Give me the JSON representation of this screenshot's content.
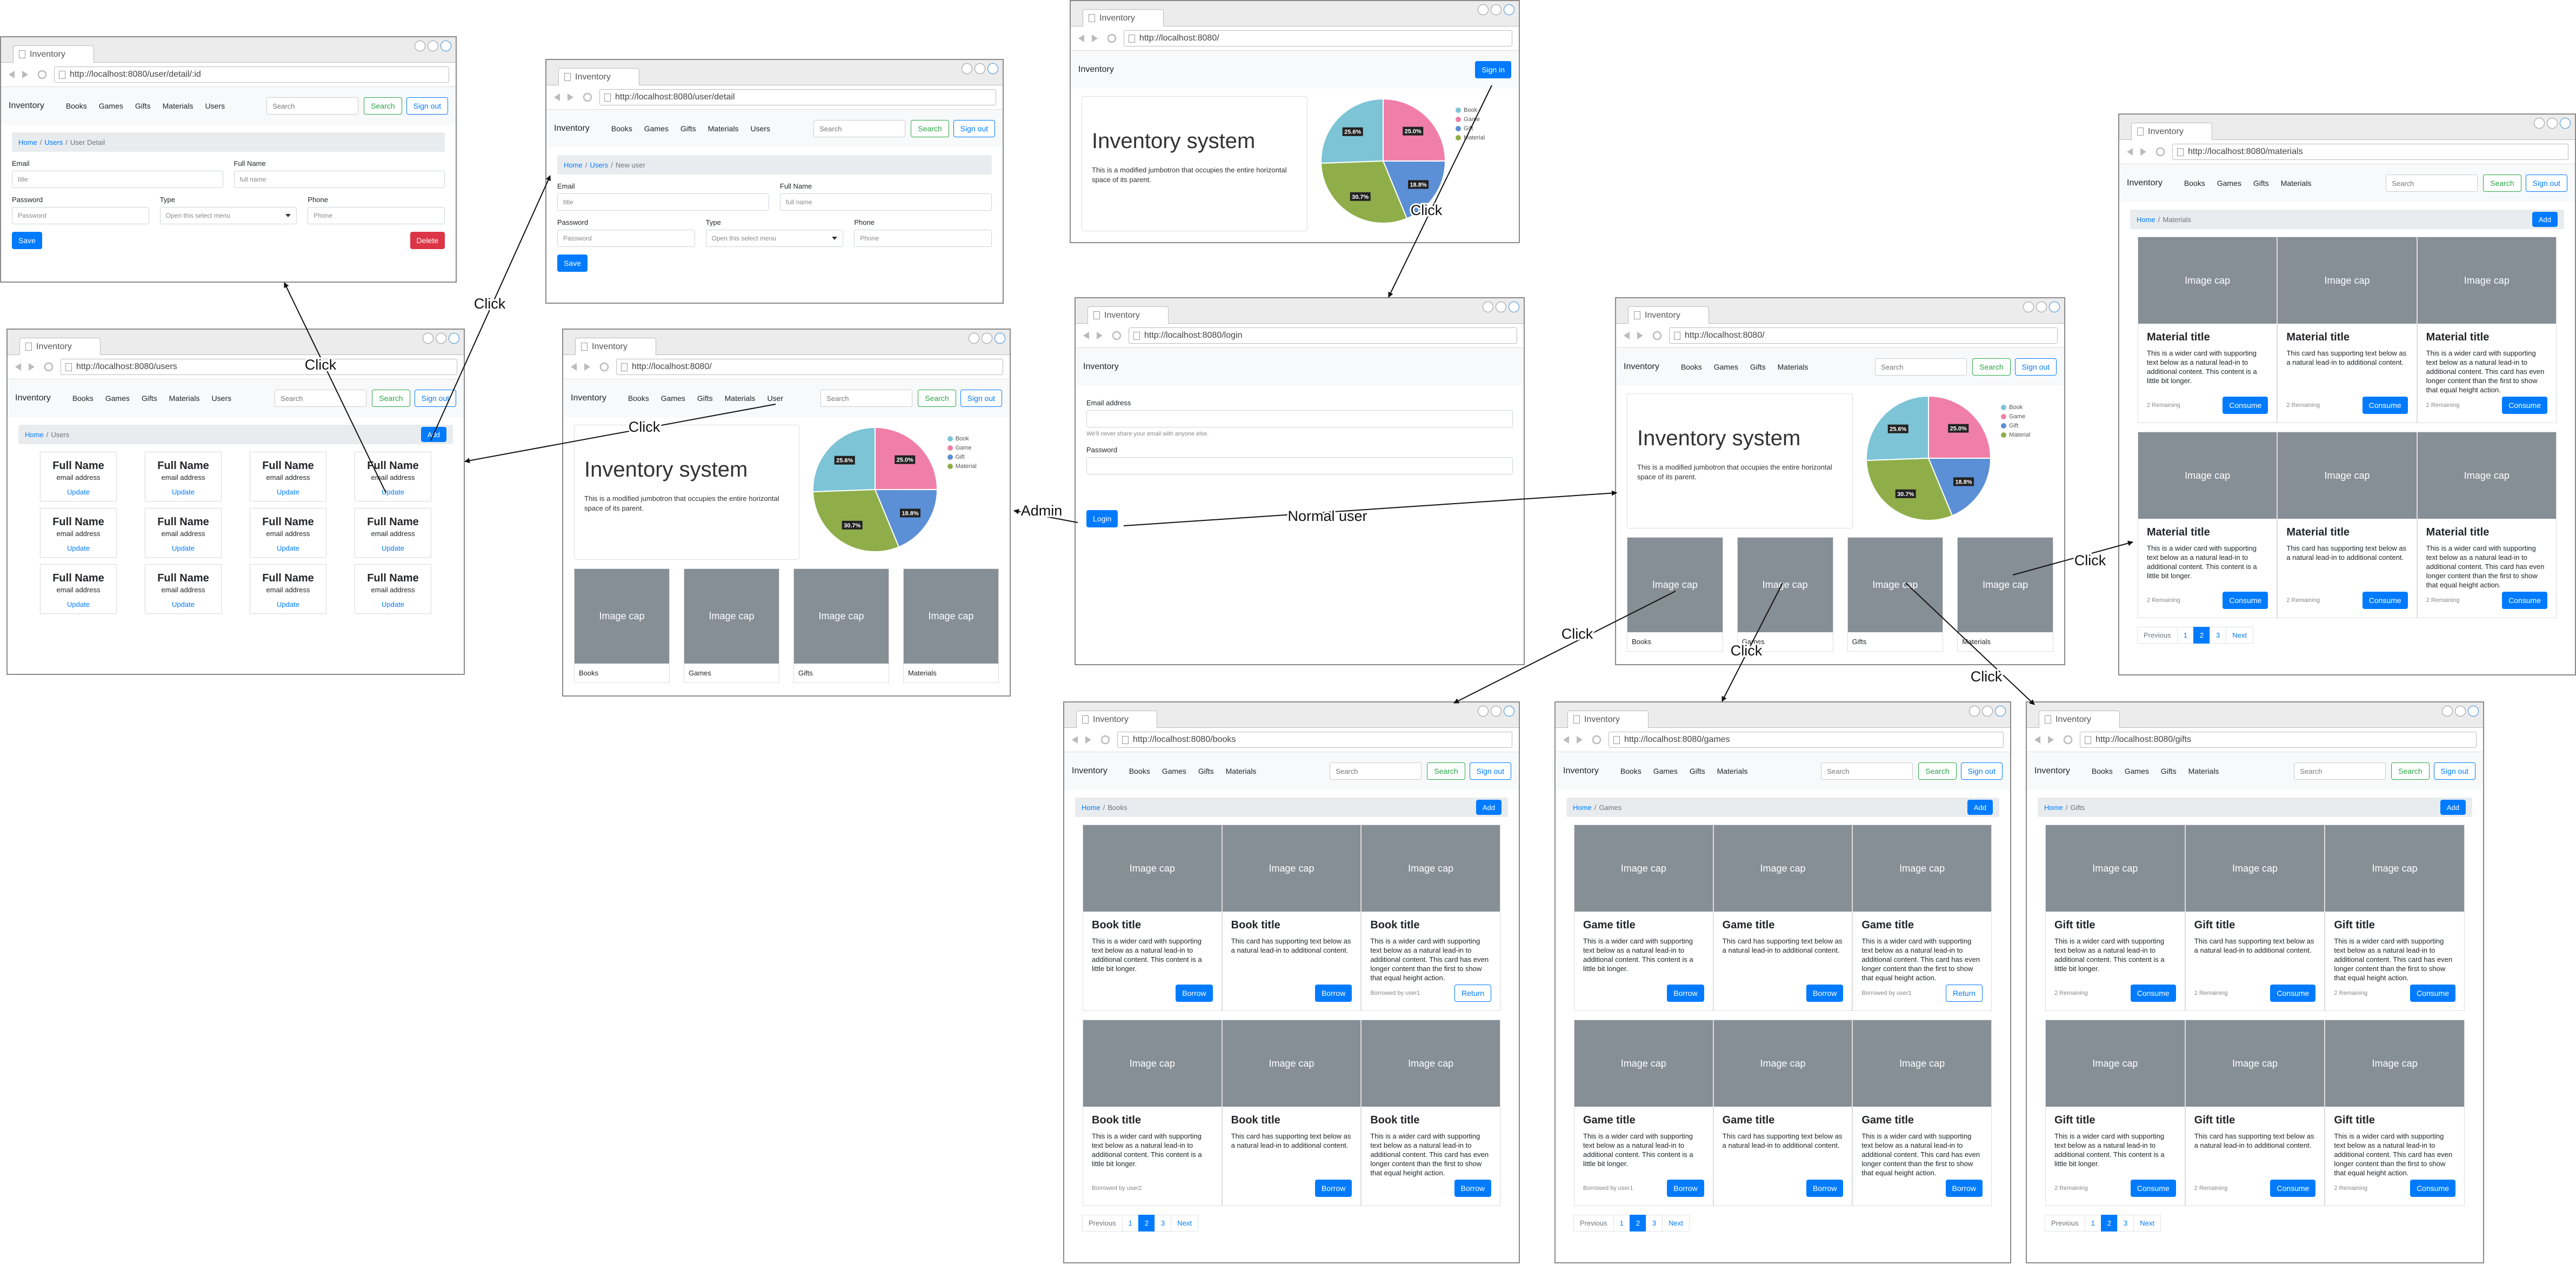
{
  "annotations": [
    "Click",
    "Click",
    "Click",
    "Click",
    "Admin",
    "Normal user",
    "Click",
    "Click",
    "Click",
    "Click"
  ],
  "windows": [
    {
      "tab": "Inventory",
      "url": "http://localhost:8080/user/detail/:id",
      "nav": {
        "brand": "Inventory",
        "links": [
          "Books",
          "Games",
          "Gifts",
          "Materials",
          "Users"
        ],
        "search": "Search",
        "buttons": [
          "Search",
          "Sign out"
        ]
      },
      "breadcrumb": {
        "items": [
          "Home",
          "Users",
          "User Detail"
        ],
        "separator": "/"
      },
      "form": {
        "rows": [
          [
            {
              "label": "Email",
              "placeholder": "title"
            },
            {
              "label": "Full Name",
              "placeholder": "full name"
            }
          ],
          [
            {
              "label": "Password",
              "placeholder": "Password"
            },
            {
              "label": "Type",
              "select": "Open this select menu"
            },
            {
              "label": "Phone",
              "placeholder": "Phone"
            }
          ]
        ],
        "buttons": [
          "Save",
          "Delete"
        ]
      }
    },
    {
      "tab": "Inventory",
      "url": "http://localhost:8080/user/detail",
      "nav": {
        "brand": "Inventory",
        "links": [
          "Books",
          "Games",
          "Gifts",
          "Materials",
          "Users"
        ],
        "search": "Search",
        "buttons": [
          "Search",
          "Sign out"
        ]
      },
      "breadcrumb": {
        "items": [
          "Home",
          "Users",
          "New user"
        ],
        "separator": "/"
      },
      "form": {
        "rows": [
          [
            {
              "label": "Email",
              "placeholder": "title"
            },
            {
              "label": "Full Name",
              "placeholder": "full name"
            }
          ],
          [
            {
              "label": "Password",
              "placeholder": "Password"
            },
            {
              "label": "Type",
              "select": "Open this select menu"
            },
            {
              "label": "Phone",
              "placeholder": "Phone"
            }
          ]
        ],
        "buttons": [
          "Save"
        ]
      }
    },
    {
      "tab": "Inventory",
      "url": "http://localhost:8080/",
      "nav": {
        "brand": "Inventory",
        "buttons": [
          "Sign in"
        ]
      },
      "home": {
        "jumbotron": {
          "title": "Inventory system",
          "text": "This is a modified jumbotron that occupies the entire horizontal space of its parent."
        },
        "pie": {
          "values": [
            25.6,
            25.0,
            18.8,
            30.7
          ],
          "value_labels": [
            "25.6%",
            "25.0%",
            "18.8%",
            "30.7%"
          ],
          "legend": [
            "Book",
            "Game",
            "Gift",
            "Material"
          ],
          "colors": [
            "#7cc4d6",
            "#f07fa8",
            "#5b8fd6",
            "#8fae4a"
          ]
        }
      }
    },
    {
      "tab": "Inventory",
      "url": "http://localhost:8080/users",
      "nav": {
        "brand": "Inventory",
        "links": [
          "Books",
          "Games",
          "Gifts",
          "Materials",
          "Users"
        ],
        "search": "Search",
        "buttons": [
          "Search",
          "Sign out"
        ]
      },
      "breadcrumb": {
        "items": [
          "Home",
          "Users"
        ],
        "separator": "/"
      },
      "add": "Add",
      "users": [
        {
          "name": "Full Name",
          "email": "email address",
          "link": "Update"
        },
        {
          "name": "Full Name",
          "email": "email address",
          "link": "Update"
        },
        {
          "name": "Full Name",
          "email": "email address",
          "link": "Update"
        },
        {
          "name": "Full Name",
          "email": "email address",
          "link": "Update"
        },
        {
          "name": "Full Name",
          "email": "email address",
          "link": "Update"
        },
        {
          "name": "Full Name",
          "email": "email address",
          "link": "Update"
        },
        {
          "name": "Full Name",
          "email": "email address",
          "link": "Update"
        },
        {
          "name": "Full Name",
          "email": "email address",
          "link": "Update"
        },
        {
          "name": "Full Name",
          "email": "email address",
          "link": "Update"
        },
        {
          "name": "Full Name",
          "email": "email address",
          "link": "Update"
        },
        {
          "name": "Full Name",
          "email": "email address",
          "link": "Update"
        },
        {
          "name": "Full Name",
          "email": "email address",
          "link": "Update"
        }
      ]
    },
    {
      "tab": "Inventory",
      "url": "http://localhost:8080/",
      "nav": {
        "brand": "Inventory",
        "links": [
          "Books",
          "Games",
          "Gifts",
          "Materials",
          "User"
        ],
        "search": "Search",
        "buttons": [
          "Search",
          "Sign out"
        ]
      },
      "home": {
        "jumbotron": {
          "title": "Inventory system",
          "text": "This is a modified jumbotron that occupies the entire horizontal space of its parent."
        },
        "pie": {
          "values": [
            25.6,
            25.0,
            18.8,
            30.7
          ],
          "value_labels": [
            "25.6%",
            "25.0%",
            "18.8%",
            "30.7%"
          ],
          "legend": [
            "Book",
            "Game",
            "Gift",
            "Material"
          ],
          "colors": [
            "#7cc4d6",
            "#f07fa8",
            "#5b8fd6",
            "#8fae4a"
          ]
        },
        "tiles": [
          {
            "image": "Image cap",
            "caption": "Books"
          },
          {
            "image": "Image cap",
            "caption": "Games"
          },
          {
            "image": "Image cap",
            "caption": "Gifts"
          },
          {
            "image": "Image cap",
            "caption": "Materials"
          }
        ]
      }
    },
    {
      "tab": "Inventory",
      "url": "http://localhost:8080/login",
      "nav": {
        "brand": "Inventory"
      },
      "login": {
        "fields": [
          {
            "label": "Email address",
            "hint": "We'll never share your email with anyone else."
          },
          {
            "label": "Password"
          }
        ],
        "button": "Login"
      }
    },
    {
      "tab": "Inventory",
      "url": "http://localhost:8080/",
      "nav": {
        "brand": "Inventory",
        "links": [
          "Books",
          "Games",
          "Gifts",
          "Materials"
        ],
        "search": "Search",
        "buttons": [
          "Search",
          "Sign out"
        ]
      },
      "home": {
        "jumbotron": {
          "title": "Inventory system",
          "text": "This is a modified jumbotron that occupies the entire horizontal space of its parent."
        },
        "pie": {
          "values": [
            25.6,
            25.0,
            18.8,
            30.7
          ],
          "value_labels": [
            "25.6%",
            "25.0%",
            "18.8%",
            "30.7%"
          ],
          "legend": [
            "Book",
            "Game",
            "Gift",
            "Material"
          ],
          "colors": [
            "#7cc4d6",
            "#f07fa8",
            "#5b8fd6",
            "#8fae4a"
          ]
        },
        "tiles": [
          {
            "image": "Image cap",
            "caption": "Books"
          },
          {
            "image": "Image cap",
            "caption": "Games"
          },
          {
            "image": "Image cap",
            "caption": "Gifts"
          },
          {
            "image": "Image cap",
            "caption": "Materials"
          }
        ]
      }
    },
    {
      "tab": "Inventory",
      "url": "http://localhost:8080/materials",
      "nav": {
        "brand": "Inventory",
        "links": [
          "Books",
          "Games",
          "Gifts",
          "Materials"
        ],
        "search": "Search",
        "buttons": [
          "Search",
          "Sign out"
        ]
      },
      "breadcrumb": {
        "items": [
          "Home",
          "Materials"
        ],
        "separator": "/"
      },
      "add": "Add",
      "cards": [
        {
          "image": "Image cap",
          "title": "Material title",
          "text": "This is a wider card with supporting text below as a natural lead-in to additional content. This content is a little bit longer.",
          "footer": "2 Remaining",
          "button": "Consume"
        },
        {
          "image": "Image cap",
          "title": "Material title",
          "text": "This card has supporting text below as a natural lead-in to additional content.",
          "footer": "2 Remaining",
          "button": "Consume"
        },
        {
          "image": "Image cap",
          "title": "Material title",
          "text": "This is a wider card with supporting text below as a natural lead-in to additional content. This card has even longer content than the first to show that equal height action.",
          "footer": "2 Remaining",
          "button": "Consume"
        },
        {
          "image": "Image cap",
          "title": "Material title",
          "text": "This is a wider card with supporting text below as a natural lead-in to additional content. This content is a little bit longer.",
          "footer": "2 Remaining",
          "button": "Consume"
        },
        {
          "image": "Image cap",
          "title": "Material title",
          "text": "This card has supporting text below as a natural lead-in to additional content.",
          "footer": "2 Remaining",
          "button": "Consume"
        },
        {
          "image": "Image cap",
          "title": "Material title",
          "text": "This is a wider card with supporting text below as a natural lead-in to additional content. This card has even longer content than the first to show that equal height action.",
          "footer": "2 Remaining",
          "button": "Consume"
        }
      ],
      "pagination": {
        "items": [
          "Previous",
          "1",
          "2",
          "3",
          "Next"
        ],
        "active": 2
      }
    },
    {
      "tab": "Inventory",
      "url": "http://localhost:8080/books",
      "nav": {
        "brand": "Inventory",
        "links": [
          "Books",
          "Games",
          "Gifts",
          "Materials"
        ],
        "search": "Search",
        "buttons": [
          "Search",
          "Sign out"
        ]
      },
      "breadcrumb": {
        "items": [
          "Home",
          "Books"
        ],
        "separator": "/"
      },
      "add": "Add",
      "cards": [
        {
          "image": "Image cap",
          "title": "Book title",
          "text": "This is a wider card with supporting text below as a natural lead-in to additional content. This content is a little bit longer.",
          "button": "Borrow"
        },
        {
          "image": "Image cap",
          "title": "Book title",
          "text": "This card has supporting text below as a natural lead-in to additional content.",
          "button": "Borrow"
        },
        {
          "image": "Image cap",
          "title": "Book title",
          "text": "This is a wider card with supporting text below as a natural lead-in to additional content. This card has even longer content than the first to show that equal height action.",
          "footer": "Borrowed by user1",
          "button": "Return",
          "outline": true
        },
        {
          "image": "Image cap",
          "title": "Book title",
          "text": "This is a wider card with supporting text below as a natural lead-in to additional content. This content is a little bit longer.",
          "footer": "Borrowed by user2"
        },
        {
          "image": "Image cap",
          "title": "Book title",
          "text": "This card has supporting text below as a natural lead-in to additional content.",
          "button": "Borrow"
        },
        {
          "image": "Image cap",
          "title": "Book title",
          "text": "This is a wider card with supporting text below as a natural lead-in to additional content. This card has even longer content than the first to show that equal height action.",
          "button": "Borrow"
        }
      ],
      "pagination": {
        "items": [
          "Previous",
          "1",
          "2",
          "3",
          "Next"
        ],
        "active": 2
      }
    },
    {
      "tab": "Inventory",
      "url": "http://localhost:8080/games",
      "nav": {
        "brand": "Inventory",
        "links": [
          "Books",
          "Games",
          "Gifts",
          "Materials"
        ],
        "search": "Search",
        "buttons": [
          "Search",
          "Sign out"
        ]
      },
      "breadcrumb": {
        "items": [
          "Home",
          "Games"
        ],
        "separator": "/"
      },
      "add": "Add",
      "cards": [
        {
          "image": "Image cap",
          "title": "Game title",
          "text": "This is a wider card with supporting text below as a natural lead-in to additional content. This content is a little bit longer.",
          "button": "Borrow"
        },
        {
          "image": "Image cap",
          "title": "Game title",
          "text": "This card has supporting text below as a natural lead-in to additional content.",
          "button": "Borrow"
        },
        {
          "image": "Image cap",
          "title": "Game title",
          "text": "This is a wider card with supporting text below as a natural lead-in to additional content. This card has even longer content than the first to show that equal height action.",
          "footer": "Borrowed by user1",
          "button": "Return",
          "outline": true
        },
        {
          "image": "Image cap",
          "title": "Game title",
          "text": "This is a wider card with supporting text below as a natural lead-in to additional content. This content is a little bit longer.",
          "footer": "Borrowed by user1",
          "button": "Borrow"
        },
        {
          "image": "Image cap",
          "title": "Game title",
          "text": "This card has supporting text below as a natural lead-in to additional content.",
          "button": "Borrow"
        },
        {
          "image": "Image cap",
          "title": "Game title",
          "text": "This is a wider card with supporting text below as a natural lead-in to additional content. This card has even longer content than the first to show that equal height action.",
          "button": "Borrow"
        }
      ],
      "pagination": {
        "items": [
          "Previous",
          "1",
          "2",
          "3",
          "Next"
        ],
        "active": 2
      }
    },
    {
      "tab": "Inventory",
      "url": "http://localhost:8080/gifts",
      "nav": {
        "brand": "Inventory",
        "links": [
          "Books",
          "Games",
          "Gifts",
          "Materials"
        ],
        "search": "Search",
        "buttons": [
          "Search",
          "Sign out"
        ]
      },
      "breadcrumb": {
        "items": [
          "Home",
          "Gifts"
        ],
        "separator": "/"
      },
      "add": "Add",
      "cards": [
        {
          "image": "Image cap",
          "title": "Gift title",
          "text": "This is a wider card with supporting text below as a natural lead-in to additional content. This content is a little bit longer.",
          "footer": "2 Remaining",
          "button": "Consume"
        },
        {
          "image": "Image cap",
          "title": "Gift title",
          "text": "This card has supporting text below as a natural lead-in to additional content.",
          "footer": "2 Remaining",
          "button": "Consume"
        },
        {
          "image": "Image cap",
          "title": "Gift title",
          "text": "This is a wider card with supporting text below as a natural lead-in to additional content. This card has even longer content than the first to show that equal height action.",
          "footer": "2 Remaining",
          "button": "Consume"
        },
        {
          "image": "Image cap",
          "title": "Gift title",
          "text": "This is a wider card with supporting text below as a natural lead-in to additional content. This content is a little bit longer.",
          "footer": "2 Remaining",
          "button": "Consume"
        },
        {
          "image": "Image cap",
          "title": "Gift title",
          "text": "This card has supporting text below as a natural lead-in to additional content.",
          "footer": "2 Remaining",
          "button": "Consume"
        },
        {
          "image": "Image cap",
          "title": "Gift title",
          "text": "This is a wider card with supporting text below as a natural lead-in to additional content. This card has even longer content than the first to show that equal height action.",
          "footer": "2 Remaining",
          "button": "Consume"
        }
      ],
      "pagination": {
        "items": [
          "Previous",
          "1",
          "2",
          "3",
          "Next"
        ],
        "active": 2
      }
    }
  ]
}
